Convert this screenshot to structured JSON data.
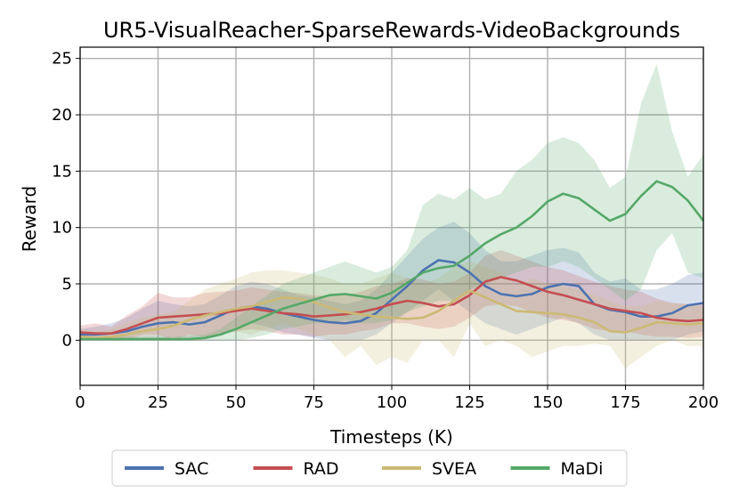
{
  "chart_data": {
    "type": "line",
    "title": "UR5-VisualReacher-SparseRewards-VideoBackgrounds",
    "xlabel": "Timesteps (K)",
    "ylabel": "Reward",
    "xlim": [
      0,
      200
    ],
    "ylim": [
      -4,
      26
    ],
    "xticks": [
      0,
      25,
      50,
      75,
      100,
      125,
      150,
      175,
      200
    ],
    "yticks": [
      0,
      5,
      10,
      15,
      20,
      25
    ],
    "grid": true,
    "legend_position": "bottom-center",
    "x": [
      0,
      5,
      10,
      15,
      20,
      25,
      30,
      35,
      40,
      45,
      50,
      55,
      60,
      65,
      70,
      75,
      80,
      85,
      90,
      95,
      100,
      105,
      110,
      115,
      120,
      125,
      130,
      135,
      140,
      145,
      150,
      155,
      160,
      165,
      170,
      175,
      180,
      185,
      190,
      195,
      200
    ],
    "series": [
      {
        "name": "SAC",
        "color": "#4c72b0",
        "values": [
          0.5,
          0.5,
          0.6,
          0.8,
          1.2,
          1.5,
          1.6,
          1.4,
          1.6,
          2.2,
          2.8,
          3.0,
          2.8,
          2.4,
          2.1,
          1.8,
          1.6,
          1.5,
          1.7,
          2.4,
          3.6,
          4.8,
          6.2,
          7.1,
          6.9,
          6.0,
          4.8,
          4.1,
          3.9,
          4.1,
          4.7,
          5.0,
          4.8,
          3.2,
          2.7,
          2.5,
          2.1,
          2.1,
          2.4,
          3.1,
          3.3
        ],
        "lower": [
          0.0,
          0.0,
          0.0,
          0.0,
          0.1,
          0.0,
          0.3,
          0.0,
          0.2,
          0.5,
          1.2,
          1.5,
          1.2,
          0.7,
          0.5,
          0.2,
          0.0,
          0.0,
          0.0,
          0.5,
          1.5,
          2.5,
          3.5,
          4.5,
          3.5,
          2.5,
          1.5,
          1.0,
          0.5,
          1.0,
          1.5,
          2.0,
          1.5,
          0.5,
          0.0,
          0.0,
          0.0,
          0.0,
          0.0,
          0.5,
          0.8
        ],
        "upper": [
          1.0,
          1.2,
          1.5,
          2.0,
          2.8,
          3.5,
          3.2,
          3.0,
          3.2,
          4.0,
          4.8,
          5.2,
          5.0,
          4.5,
          4.0,
          3.8,
          3.5,
          3.2,
          3.5,
          4.5,
          6.0,
          7.5,
          9.0,
          10.0,
          10.5,
          9.5,
          8.0,
          7.0,
          7.0,
          7.5,
          8.0,
          8.2,
          7.8,
          6.0,
          5.2,
          5.5,
          4.5,
          4.5,
          5.0,
          5.8,
          6.0
        ]
      },
      {
        "name": "RAD",
        "color": "#c44e52",
        "values": [
          0.7,
          0.6,
          0.6,
          1.0,
          1.5,
          2.0,
          2.1,
          2.2,
          2.3,
          2.4,
          2.6,
          2.8,
          2.6,
          2.4,
          2.3,
          2.1,
          2.2,
          2.3,
          2.5,
          2.8,
          3.2,
          3.5,
          3.3,
          3.0,
          3.2,
          4.0,
          5.2,
          5.6,
          5.3,
          4.8,
          4.3,
          4.0,
          3.6,
          3.2,
          2.8,
          2.6,
          2.4,
          2.0,
          1.8,
          1.7,
          1.8
        ],
        "lower": [
          0.0,
          0.0,
          0.0,
          0.0,
          0.5,
          0.5,
          0.0,
          0.5,
          0.3,
          0.5,
          0.8,
          1.0,
          0.8,
          0.5,
          0.5,
          0.3,
          0.5,
          0.5,
          0.8,
          1.0,
          1.5,
          1.5,
          1.2,
          1.0,
          1.2,
          2.0,
          3.0,
          3.2,
          3.0,
          2.5,
          2.0,
          1.8,
          1.5,
          1.0,
          0.8,
          0.8,
          0.5,
          0.3,
          0.3,
          0.2,
          0.3
        ],
        "upper": [
          1.3,
          1.5,
          1.2,
          2.2,
          3.0,
          4.2,
          3.8,
          3.8,
          4.2,
          4.3,
          4.4,
          4.7,
          4.5,
          4.3,
          4.2,
          4.0,
          3.9,
          4.0,
          4.3,
          4.8,
          5.0,
          5.5,
          5.4,
          5.0,
          5.2,
          6.0,
          7.5,
          8.0,
          7.5,
          7.0,
          6.5,
          6.2,
          5.7,
          5.2,
          4.8,
          4.5,
          4.3,
          3.7,
          3.3,
          3.2,
          3.3
        ]
      },
      {
        "name": "SVEA",
        "color": "#ccb974",
        "values": [
          0.3,
          0.2,
          0.3,
          0.5,
          0.8,
          1.0,
          1.3,
          1.8,
          2.2,
          2.5,
          2.8,
          3.0,
          3.4,
          3.8,
          3.7,
          3.4,
          2.9,
          2.5,
          2.3,
          2.1,
          2.0,
          1.9,
          2.0,
          2.6,
          3.5,
          4.4,
          3.8,
          3.2,
          2.6,
          2.5,
          2.4,
          2.3,
          2.0,
          1.6,
          0.8,
          0.7,
          1.1,
          1.6,
          1.5,
          1.4,
          1.5
        ],
        "lower": [
          0.0,
          0.0,
          0.0,
          0.0,
          0.0,
          0.0,
          0.0,
          0.0,
          0.2,
          0.5,
          0.8,
          0.5,
          1.0,
          1.5,
          1.0,
          0.5,
          0.0,
          -1.5,
          -0.5,
          -2.2,
          -1.5,
          -2.0,
          0.0,
          0.0,
          -1.5,
          1.5,
          -0.5,
          0.0,
          -0.5,
          -1.5,
          -1.0,
          -0.5,
          -0.5,
          -0.3,
          -0.5,
          -2.5,
          -1.5,
          -0.5,
          0.0,
          -0.5,
          -0.5
        ],
        "upper": [
          1.0,
          0.8,
          1.0,
          1.5,
          2.0,
          2.3,
          2.5,
          3.5,
          4.5,
          5.0,
          5.5,
          6.0,
          6.2,
          6.2,
          6.0,
          5.8,
          5.5,
          5.0,
          5.0,
          5.5,
          6.0,
          5.5,
          5.0,
          5.5,
          6.5,
          7.0,
          6.5,
          6.0,
          5.0,
          5.5,
          5.0,
          4.8,
          4.5,
          4.0,
          3.5,
          3.0,
          3.0,
          3.5,
          3.3,
          3.2,
          3.0
        ]
      },
      {
        "name": "MaDi",
        "color": "#55a868",
        "values": [
          0.1,
          0.1,
          0.1,
          0.1,
          0.1,
          0.1,
          0.1,
          0.1,
          0.2,
          0.5,
          1.0,
          1.6,
          2.2,
          2.8,
          3.2,
          3.6,
          4.0,
          4.1,
          3.9,
          3.7,
          4.2,
          5.1,
          6.0,
          6.4,
          6.6,
          7.5,
          8.6,
          9.4,
          10.0,
          11.0,
          12.3,
          13.0,
          12.6,
          11.6,
          10.6,
          11.2,
          12.8,
          14.1,
          13.6,
          12.4,
          10.6
        ],
        "lower": [
          0.0,
          0.0,
          0.0,
          0.0,
          0.0,
          0.0,
          0.0,
          0.0,
          0.0,
          0.0,
          0.0,
          0.2,
          0.5,
          1.0,
          1.2,
          1.5,
          1.5,
          1.8,
          1.5,
          1.5,
          1.8,
          2.5,
          3.0,
          3.5,
          3.5,
          4.5,
          5.0,
          5.5,
          6.0,
          6.5,
          6.5,
          7.0,
          6.5,
          5.5,
          4.5,
          3.5,
          4.5,
          8.0,
          9.5,
          6.0,
          5.5
        ],
        "upper": [
          0.3,
          0.3,
          0.3,
          0.3,
          0.3,
          0.3,
          0.3,
          0.4,
          0.5,
          1.0,
          2.0,
          3.0,
          4.0,
          5.0,
          5.5,
          6.0,
          6.5,
          7.0,
          6.5,
          6.0,
          6.5,
          8.0,
          12.0,
          13.0,
          12.5,
          13.5,
          12.5,
          13.0,
          15.0,
          16.0,
          17.5,
          18.0,
          17.5,
          16.0,
          13.5,
          14.5,
          21.0,
          24.5,
          18.5,
          14.5,
          16.5
        ]
      }
    ]
  }
}
